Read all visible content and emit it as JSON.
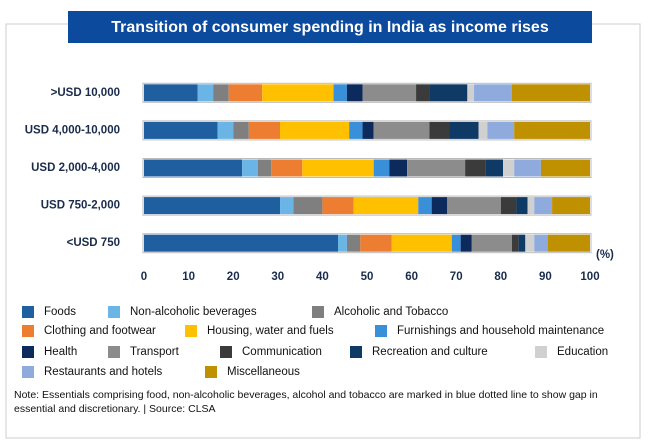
{
  "chart_data": {
    "type": "stacked-bar-horizontal",
    "title": "Transition of consumer spending in India as income rises",
    "xlabel": "(%)",
    "note": "Note: Essentials comprising food, non-alcoholic beverages, alcohol and tobacco are marked in blue dotted line to show gap in essential and discretionary. | Source: CLSA",
    "categories": [
      ">USD 10,000",
      "USD 4,000-10,000",
      "USD 2,000-4,000",
      "USD 750-2,000",
      "<USD 750"
    ],
    "xlim": [
      0,
      100
    ],
    "xticks": [
      0,
      10,
      20,
      30,
      40,
      50,
      60,
      70,
      80,
      90,
      100
    ],
    "series": [
      {
        "name": "Foods",
        "color": "#1f5fa0",
        "values": [
          12,
          16.5,
          22,
          30.5,
          43.5
        ]
      },
      {
        "name": "Non-alcoholic beverages",
        "color": "#6bb5e6",
        "values": [
          3.5,
          3.5,
          3.5,
          3,
          2
        ]
      },
      {
        "name": "Alcoholic and Tobacco",
        "color": "#7f7f7f",
        "values": [
          3.5,
          3.5,
          3,
          6.5,
          3
        ]
      },
      {
        "name": "Clothing and footwear",
        "color": "#ed7d31",
        "values": [
          7.5,
          7,
          7,
          7,
          7
        ]
      },
      {
        "name": "Housing, water and fuels",
        "color": "#ffc000",
        "values": [
          16,
          15.5,
          16,
          14.5,
          13.5
        ]
      },
      {
        "name": "Furnishings and household maintenance",
        "color": "#3a8fd9",
        "values": [
          3,
          3,
          3.5,
          3,
          2
        ]
      },
      {
        "name": "Health",
        "color": "#0c2a5c",
        "values": [
          3.5,
          2.5,
          4,
          3.5,
          2.5
        ]
      },
      {
        "name": "Transport",
        "color": "#8c8c8c",
        "values": [
          12,
          12.5,
          13,
          12,
          9
        ]
      },
      {
        "name": "Communication",
        "color": "#3b3b3b",
        "values": [
          3,
          4.5,
          4.5,
          3.5,
          1.5
        ]
      },
      {
        "name": "Recreation and culture",
        "color": "#0f3a66",
        "values": [
          8.5,
          6.5,
          4,
          2.5,
          1.5
        ]
      },
      {
        "name": "Education",
        "color": "#d0d0d0",
        "values": [
          1.5,
          2,
          2.5,
          1.5,
          2
        ]
      },
      {
        "name": "Restaurants and hotels",
        "color": "#8faadc",
        "values": [
          8.5,
          6,
          6,
          4,
          3
        ]
      },
      {
        "name": "Miscellaneous",
        "color": "#bf9000",
        "values": [
          17.5,
          17,
          11,
          8.5,
          9.5
        ]
      }
    ]
  }
}
